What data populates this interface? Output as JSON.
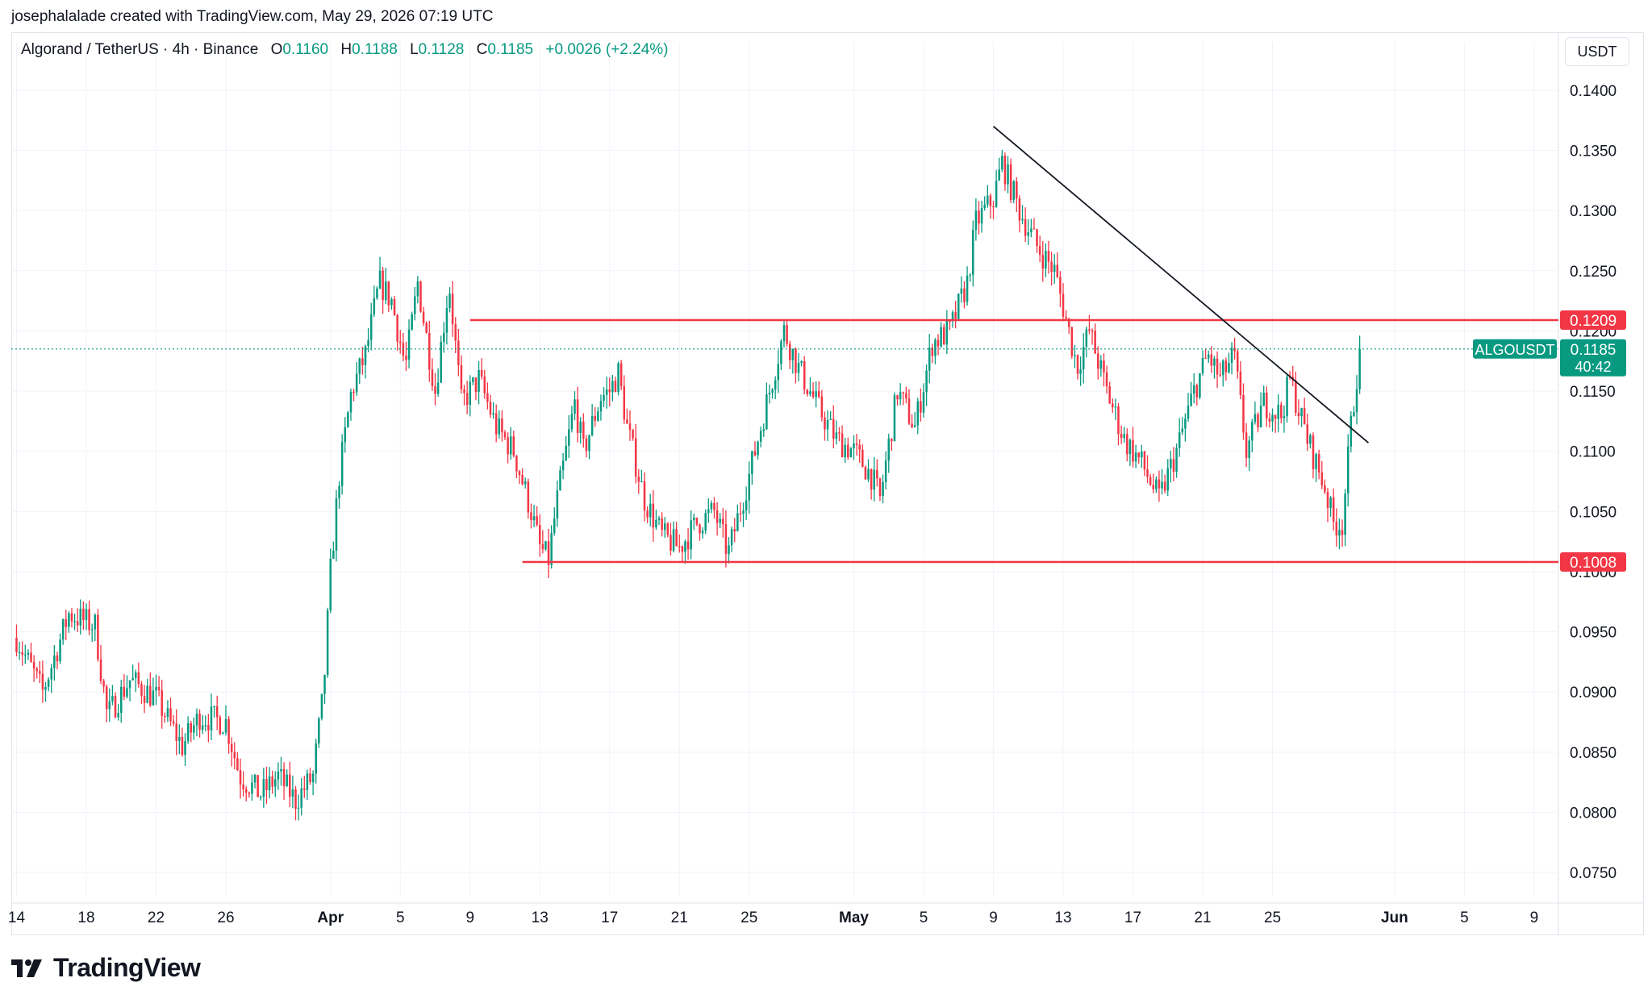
{
  "author_line": "josephalalade created with TradingView.com, May 29, 2026 07:19 UTC",
  "legend": {
    "symbol": "Algorand / TetherUS · 4h · Binance",
    "open_label": "O",
    "open": "0.1160",
    "high_label": "H",
    "high": "0.1188",
    "low_label": "L",
    "low": "0.1128",
    "close_label": "C",
    "close": "0.1185",
    "change": "+0.0026 (+2.24%)"
  },
  "currency_button": "USDT",
  "brand": "TradingView",
  "colors": {
    "up": "#089981",
    "down": "#f23645",
    "level": "#f23645",
    "trend": "#131722",
    "grid": "#f0f3fa"
  },
  "chart_data": {
    "type": "candlestick",
    "symbol": "ALGOUSDT",
    "interval": "4h",
    "ylim": [
      0.073,
      0.142
    ],
    "y_ticks": [
      "0.1400",
      "0.1350",
      "0.1300",
      "0.1250",
      "0.1200",
      "0.1150",
      "0.1100",
      "0.1050",
      "0.1000",
      "0.0950",
      "0.0900",
      "0.0850",
      "0.0800",
      "0.0750"
    ],
    "x_ticks": [
      {
        "label": "14",
        "day": 0
      },
      {
        "label": "18",
        "day": 4
      },
      {
        "label": "22",
        "day": 8
      },
      {
        "label": "26",
        "day": 12
      },
      {
        "label": "Apr",
        "day": 18
      },
      {
        "label": "5",
        "day": 22
      },
      {
        "label": "9",
        "day": 26
      },
      {
        "label": "13",
        "day": 30
      },
      {
        "label": "17",
        "day": 34
      },
      {
        "label": "21",
        "day": 38
      },
      {
        "label": "25",
        "day": 42
      },
      {
        "label": "May",
        "day": 48
      },
      {
        "label": "5",
        "day": 52
      },
      {
        "label": "9",
        "day": 56
      },
      {
        "label": "13",
        "day": 60
      },
      {
        "label": "17",
        "day": 64
      },
      {
        "label": "21",
        "day": 68
      },
      {
        "label": "25",
        "day": 72
      },
      {
        "label": "Jun",
        "day": 79
      },
      {
        "label": "5",
        "day": 83
      },
      {
        "label": "9",
        "day": 87
      }
    ],
    "x_range_days": [
      -0.3,
      88.3
    ],
    "price_path": [
      [
        0,
        0.0945
      ],
      [
        1.5,
        0.09
      ],
      [
        3,
        0.0965
      ],
      [
        4.5,
        0.0955
      ],
      [
        5.2,
        0.088
      ],
      [
        6.5,
        0.091
      ],
      [
        8,
        0.0895
      ],
      [
        9.5,
        0.0855
      ],
      [
        10.5,
        0.088
      ],
      [
        12,
        0.0875
      ],
      [
        12.8,
        0.083
      ],
      [
        14,
        0.0815
      ],
      [
        15,
        0.083
      ],
      [
        16,
        0.081
      ],
      [
        17,
        0.083
      ],
      [
        17.6,
        0.09
      ],
      [
        18,
        0.1
      ],
      [
        18.5,
        0.108
      ],
      [
        19.2,
        0.115
      ],
      [
        20,
        0.118
      ],
      [
        20.8,
        0.124
      ],
      [
        21.5,
        0.1225
      ],
      [
        22.3,
        0.117
      ],
      [
        23,
        0.124
      ],
      [
        24,
        0.115
      ],
      [
        24.8,
        0.124
      ],
      [
        25.5,
        0.114
      ],
      [
        26.5,
        0.116
      ],
      [
        27.5,
        0.112
      ],
      [
        28.5,
        0.11
      ],
      [
        29.5,
        0.105
      ],
      [
        30,
        0.102
      ],
      [
        30.5,
        0.101
      ],
      [
        31,
        0.106
      ],
      [
        32,
        0.114
      ],
      [
        32.5,
        0.11
      ],
      [
        33.5,
        0.1145
      ],
      [
        34,
        0.115
      ],
      [
        34.5,
        0.1165
      ],
      [
        35,
        0.112
      ],
      [
        36,
        0.106
      ],
      [
        37,
        0.103
      ],
      [
        38,
        0.102
      ],
      [
        39,
        0.104
      ],
      [
        40,
        0.105
      ],
      [
        40.8,
        0.1015
      ],
      [
        42,
        0.108
      ],
      [
        43,
        0.114
      ],
      [
        44,
        0.12
      ],
      [
        44.8,
        0.117
      ],
      [
        46,
        0.1135
      ],
      [
        47,
        0.111
      ],
      [
        48,
        0.11
      ],
      [
        49,
        0.108
      ],
      [
        49.5,
        0.106
      ],
      [
        50.5,
        0.115
      ],
      [
        51.5,
        0.112
      ],
      [
        52.5,
        0.119
      ],
      [
        53.5,
        0.12
      ],
      [
        54.5,
        0.124
      ],
      [
        55,
        0.129
      ],
      [
        56,
        0.131
      ],
      [
        56.5,
        0.134
      ],
      [
        57.5,
        0.13
      ],
      [
        58.5,
        0.127
      ],
      [
        59.5,
        0.125
      ],
      [
        60,
        0.122
      ],
      [
        60.8,
        0.117
      ],
      [
        61.5,
        0.12
      ],
      [
        62.5,
        0.115
      ],
      [
        63.5,
        0.111
      ],
      [
        64.5,
        0.109
      ],
      [
        65.5,
        0.106
      ],
      [
        66.5,
        0.11
      ],
      [
        67.5,
        0.115
      ],
      [
        68.3,
        0.118
      ],
      [
        69,
        0.116
      ],
      [
        69.8,
        0.118
      ],
      [
        70.5,
        0.11
      ],
      [
        71.5,
        0.114
      ],
      [
        72.5,
        0.113
      ],
      [
        73,
        0.116
      ],
      [
        74,
        0.111
      ],
      [
        74.5,
        0.109
      ],
      [
        75,
        0.107
      ],
      [
        75.5,
        0.104
      ],
      [
        76,
        0.104
      ],
      [
        76.5,
        0.112
      ],
      [
        77,
        0.1185
      ]
    ],
    "horizontal_levels": [
      {
        "price": 0.1209,
        "label": "0.1209",
        "from_day": 26
      },
      {
        "price": 0.1008,
        "label": "0.1008",
        "from_day": 29
      }
    ],
    "trendline": {
      "from": {
        "day": 56,
        "price": 0.137
      },
      "to": {
        "day": 77.5,
        "price": 0.1107
      }
    },
    "last_price": {
      "symbol": "ALGOUSDT",
      "price": "0.1185",
      "countdown": "40:42",
      "value": 0.1185
    }
  }
}
